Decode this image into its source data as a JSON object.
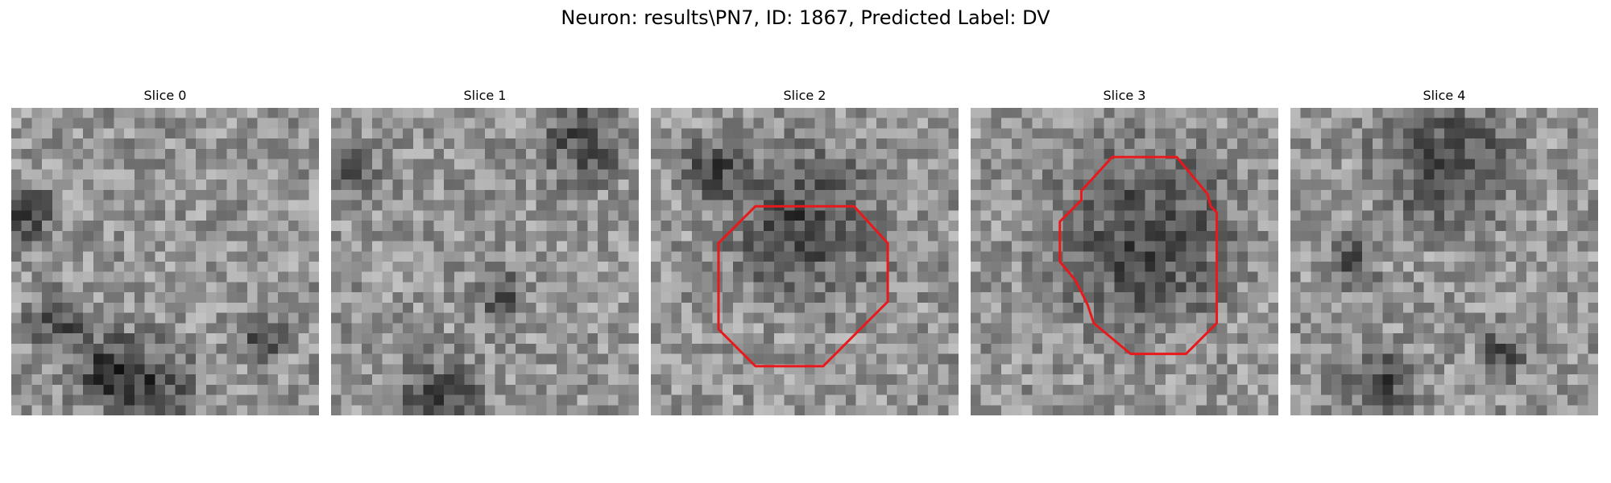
{
  "title": "Neuron: results\\PN7, ID: 1867, Predicted Label: DV",
  "image_kind": "grayscale microscopy patches (pixelated)",
  "grid_size": 30,
  "contour_color": "#e8191c",
  "panels": [
    {
      "title": "Slice 0",
      "has_contour": false,
      "dark_spots": [
        [
          0.05,
          0.35,
          0.1
        ],
        [
          0.3,
          0.85,
          0.12
        ],
        [
          0.45,
          0.9,
          0.15
        ],
        [
          0.15,
          0.7,
          0.1
        ],
        [
          0.82,
          0.75,
          0.08
        ]
      ]
    },
    {
      "title": "Slice 1",
      "has_contour": false,
      "dark_spots": [
        [
          0.82,
          0.1,
          0.14
        ],
        [
          0.35,
          0.95,
          0.15
        ],
        [
          0.05,
          0.2,
          0.1
        ],
        [
          0.55,
          0.6,
          0.08
        ]
      ]
    },
    {
      "title": "Slice 2",
      "has_contour": true,
      "dark_spots": [
        [
          0.5,
          0.38,
          0.25
        ],
        [
          0.2,
          0.2,
          0.1
        ]
      ],
      "contour": [
        [
          0.34,
          0.32
        ],
        [
          0.66,
          0.32
        ],
        [
          0.77,
          0.44
        ],
        [
          0.77,
          0.63
        ],
        [
          0.56,
          0.84
        ],
        [
          0.34,
          0.84
        ],
        [
          0.22,
          0.72
        ],
        [
          0.22,
          0.44
        ]
      ]
    },
    {
      "title": "Slice 3",
      "has_contour": true,
      "dark_spots": [
        [
          0.56,
          0.42,
          0.3
        ]
      ],
      "contour": [
        [
          0.46,
          0.16
        ],
        [
          0.67,
          0.16
        ],
        [
          0.77,
          0.28
        ],
        [
          0.78,
          0.32
        ],
        [
          0.8,
          0.34
        ],
        [
          0.8,
          0.7
        ],
        [
          0.7,
          0.8
        ],
        [
          0.52,
          0.8
        ],
        [
          0.4,
          0.7
        ],
        [
          0.38,
          0.64
        ],
        [
          0.34,
          0.56
        ],
        [
          0.29,
          0.5
        ],
        [
          0.29,
          0.37
        ],
        [
          0.36,
          0.3
        ],
        [
          0.36,
          0.27
        ]
      ]
    },
    {
      "title": "Slice 4",
      "has_contour": false,
      "dark_spots": [
        [
          0.5,
          0.17,
          0.22
        ],
        [
          0.3,
          0.9,
          0.12
        ],
        [
          0.2,
          0.5,
          0.08
        ],
        [
          0.7,
          0.8,
          0.08
        ]
      ]
    }
  ]
}
